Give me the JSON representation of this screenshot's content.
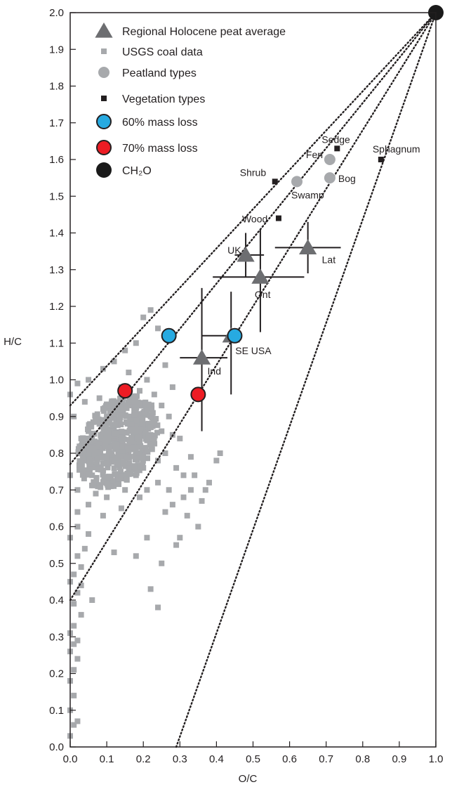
{
  "chart_data": {
    "type": "scatter",
    "xlabel": "O/C",
    "ylabel": "H/C",
    "xlim": [
      0,
      1
    ],
    "ylim": [
      0,
      2
    ],
    "xticks": [
      "0.0",
      "0.1",
      "0.2",
      "0.3",
      "0.4",
      "0.5",
      "0.6",
      "0.7",
      "0.8",
      "0.9",
      "1.0"
    ],
    "yticks": [
      "0.0",
      "0.1",
      "0.2",
      "0.3",
      "0.4",
      "0.5",
      "0.6",
      "0.7",
      "0.8",
      "0.9",
      "1.0",
      "1.1",
      "1.2",
      "1.3",
      "1.4",
      "1.5",
      "1.6",
      "1.7",
      "1.8",
      "1.9",
      "2.0"
    ],
    "legend_position": "top-left",
    "legend": [
      {
        "label": "Regional Holocene peat average",
        "marker": "triangle",
        "color": "#6d6e71"
      },
      {
        "label": "USGS coal data",
        "marker": "small-square",
        "color": "#a7a9ac"
      },
      {
        "label": "Peatland types",
        "marker": "circle",
        "color": "#a7a9ac"
      },
      {
        "label": "Vegetation types",
        "marker": "small-square",
        "color": "#231f20"
      },
      {
        "label": "60% mass loss",
        "marker": "circle-outlined",
        "color": "#27aae1"
      },
      {
        "label": "70% mass loss",
        "marker": "circle-outlined",
        "color": "#ed1c24"
      },
      {
        "label": "CH₂O",
        "marker": "circle",
        "color": "#1a1a1a"
      }
    ],
    "lines_to_ch2o": [
      {
        "from": [
          0,
          0.93
        ]
      },
      {
        "from": [
          0,
          0.77
        ]
      },
      {
        "from": [
          0,
          0.4
        ]
      },
      {
        "from": [
          0.29,
          0
        ]
      }
    ],
    "regional_peat": [
      {
        "label": "UK",
        "x": 0.48,
        "y": 1.34,
        "x_range": [
          0.45,
          0.53
        ],
        "y_range": [
          1.28,
          1.4
        ]
      },
      {
        "label": "Ont",
        "x": 0.52,
        "y": 1.28,
        "x_range": [
          0.39,
          0.64
        ],
        "y_range": [
          1.13,
          1.41
        ]
      },
      {
        "label": "Lat",
        "x": 0.65,
        "y": 1.36,
        "x_range": [
          0.56,
          0.74
        ],
        "y_range": [
          1.29,
          1.43
        ]
      },
      {
        "label": "SE USA",
        "x": 0.44,
        "y": 1.12,
        "x_range": [
          0.36,
          0.47
        ],
        "y_range": [
          0.96,
          1.24
        ]
      },
      {
        "label": "Ind",
        "x": 0.36,
        "y": 1.06,
        "x_range": [
          0.3,
          0.43
        ],
        "y_range": [
          0.86,
          1.25
        ]
      }
    ],
    "peatland_types": [
      {
        "label": "Fen",
        "x": 0.71,
        "y": 1.6
      },
      {
        "label": "Swamp",
        "x": 0.62,
        "y": 1.54
      },
      {
        "label": "Bog",
        "x": 0.71,
        "y": 1.55
      }
    ],
    "vegetation_types": [
      {
        "label": "Sedge",
        "x": 0.73,
        "y": 1.63
      },
      {
        "label": "Sphagnum",
        "x": 0.85,
        "y": 1.6
      },
      {
        "label": "Shrub",
        "x": 0.56,
        "y": 1.54
      },
      {
        "label": "Wood",
        "x": 0.57,
        "y": 1.44
      }
    ],
    "mass_loss_60": [
      {
        "x": 0.27,
        "y": 1.12
      },
      {
        "x": 0.45,
        "y": 1.12
      }
    ],
    "mass_loss_70": [
      {
        "x": 0.15,
        "y": 0.97
      },
      {
        "x": 0.35,
        "y": 0.96
      }
    ],
    "ch2o": {
      "x": 1.0,
      "y": 2.0
    },
    "usgs_coal": [
      [
        0.0,
        0.03
      ],
      [
        0.01,
        0.06
      ],
      [
        0.02,
        0.07
      ],
      [
        0.0,
        0.1
      ],
      [
        0.01,
        0.14
      ],
      [
        0.0,
        0.18
      ],
      [
        0.01,
        0.21
      ],
      [
        0.02,
        0.24
      ],
      [
        0.0,
        0.26
      ],
      [
        0.01,
        0.28
      ],
      [
        0.02,
        0.29
      ],
      [
        0.0,
        0.31
      ],
      [
        0.01,
        0.33
      ],
      [
        0.03,
        0.36
      ],
      [
        0.01,
        0.39
      ],
      [
        0.02,
        0.42
      ],
      [
        0.0,
        0.45
      ],
      [
        0.01,
        0.47
      ],
      [
        0.03,
        0.49
      ],
      [
        0.02,
        0.52
      ],
      [
        0.04,
        0.54
      ],
      [
        0.06,
        0.4
      ],
      [
        0.03,
        0.44
      ],
      [
        0.0,
        0.57
      ],
      [
        0.05,
        0.58
      ],
      [
        0.02,
        0.6
      ],
      [
        0.24,
        0.38
      ],
      [
        0.22,
        0.43
      ],
      [
        0.25,
        0.5
      ],
      [
        0.18,
        0.52
      ],
      [
        0.12,
        0.53
      ],
      [
        0.29,
        0.55
      ],
      [
        0.21,
        0.57
      ],
      [
        0.3,
        0.57
      ],
      [
        0.35,
        0.6
      ],
      [
        0.38,
        0.72
      ],
      [
        0.4,
        0.78
      ],
      [
        0.41,
        0.8
      ],
      [
        0.36,
        0.67
      ],
      [
        0.32,
        0.63
      ],
      [
        0.33,
        0.7
      ],
      [
        0.28,
        0.66
      ],
      [
        0.26,
        0.64
      ],
      [
        0.31,
        0.74
      ],
      [
        0.22,
        1.19
      ],
      [
        0.2,
        1.17
      ],
      [
        0.24,
        1.14
      ],
      [
        0.18,
        1.1
      ],
      [
        0.15,
        1.08
      ],
      [
        0.12,
        1.05
      ],
      [
        0.09,
        1.03
      ],
      [
        0.05,
        1.0
      ],
      [
        0.02,
        0.99
      ],
      [
        0.0,
        0.96
      ],
      [
        0.08,
        0.95
      ],
      [
        0.13,
        0.92
      ],
      [
        0.18,
        0.88
      ],
      [
        0.22,
        0.85
      ],
      [
        0.26,
        0.8
      ],
      [
        0.29,
        0.76
      ],
      [
        0.24,
        0.72
      ],
      [
        0.19,
        0.68
      ],
      [
        0.14,
        0.65
      ],
      [
        0.09,
        0.63
      ],
      [
        0.05,
        0.66
      ],
      [
        0.02,
        0.7
      ],
      [
        0.0,
        0.74
      ],
      [
        0.04,
        0.78
      ],
      [
        0.07,
        0.82
      ],
      [
        0.11,
        0.86
      ],
      [
        0.16,
        0.8
      ],
      [
        0.2,
        0.76
      ],
      [
        0.12,
        0.72
      ],
      [
        0.06,
        0.74
      ],
      [
        0.03,
        0.84
      ],
      [
        0.1,
        0.9
      ],
      [
        0.17,
        0.93
      ],
      [
        0.23,
        0.96
      ],
      [
        0.27,
        0.9
      ],
      [
        0.3,
        0.84
      ],
      [
        0.33,
        0.79
      ],
      [
        0.25,
        0.86
      ],
      [
        0.21,
        1.0
      ],
      [
        0.16,
        1.02
      ],
      [
        0.26,
        1.04
      ],
      [
        0.28,
        0.98
      ],
      [
        0.14,
        0.98
      ],
      [
        0.19,
        0.97
      ],
      [
        0.08,
        0.88
      ],
      [
        0.01,
        0.9
      ],
      [
        0.04,
        0.94
      ],
      [
        0.13,
        0.77
      ],
      [
        0.18,
        0.74
      ],
      [
        0.21,
        0.7
      ],
      [
        0.27,
        0.7
      ],
      [
        0.34,
        0.74
      ],
      [
        0.37,
        0.7
      ],
      [
        0.31,
        0.68
      ],
      [
        0.1,
        0.68
      ],
      [
        0.07,
        0.69
      ],
      [
        0.02,
        0.64
      ],
      [
        0.15,
        0.7
      ],
      [
        0.24,
        0.78
      ],
      [
        0.09,
        0.79
      ],
      [
        0.05,
        0.86
      ],
      [
        0.12,
        0.83
      ],
      [
        0.22,
        0.9
      ],
      [
        0.17,
        0.86
      ],
      [
        0.28,
        0.85
      ],
      [
        0.25,
        0.93
      ]
    ]
  }
}
